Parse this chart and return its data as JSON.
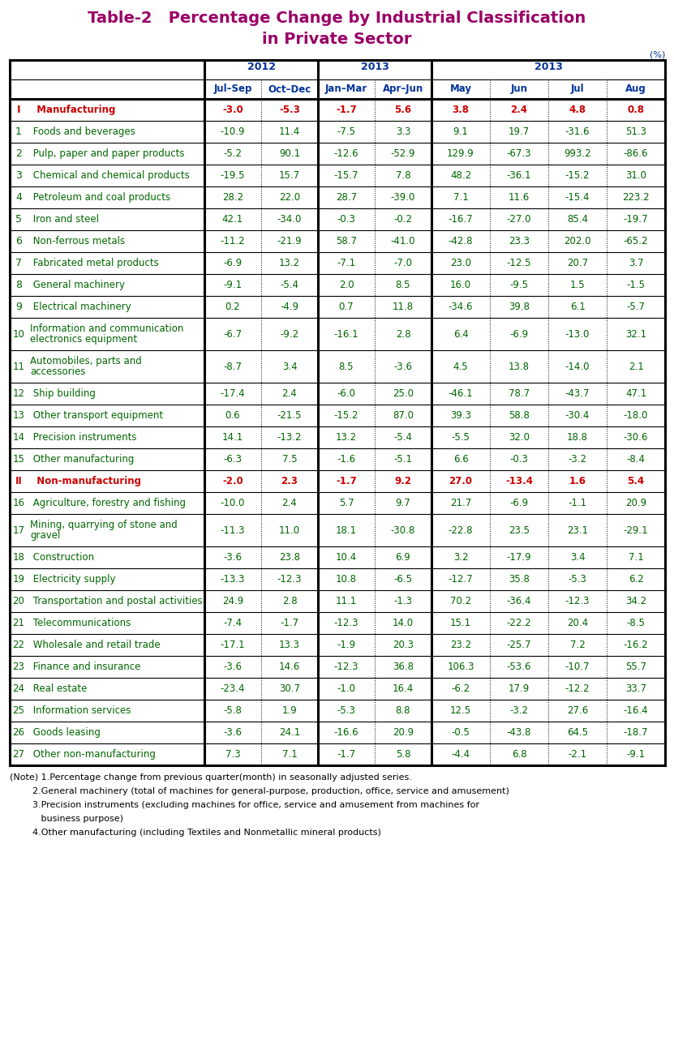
{
  "title_line1": "Table-2   Percentage Change by Industrial Classification",
  "title_line2": "in Private Sector",
  "title_color": "#990066",
  "header_color": "#003399",
  "note_color": "#000000",
  "green_color": "#006600",
  "red_color": "#cc0000",
  "col_headers_row2": [
    "Jul–Sep",
    "Oct–Dec",
    "Jan–Mar",
    "Apr–Jun",
    "May",
    "Jun",
    "Jul",
    "Aug"
  ],
  "rows": [
    {
      "num": "I",
      "label": "  Manufacturing",
      "values": [
        "-3.0",
        "-5.3",
        "-1.7",
        "5.6",
        "3.8",
        "2.4",
        "4.8",
        "0.8"
      ],
      "style": "header"
    },
    {
      "num": "1",
      "label": " Foods and beverages",
      "values": [
        "-10.9",
        "11.4",
        "-7.5",
        "3.3",
        "9.1",
        "19.7",
        "-31.6",
        "51.3"
      ],
      "style": "normal"
    },
    {
      "num": "2",
      "label": " Pulp, paper and paper products",
      "values": [
        "-5.2",
        "90.1",
        "-12.6",
        "-52.9",
        "129.9",
        "-67.3",
        "993.2",
        "-86.6"
      ],
      "style": "normal"
    },
    {
      "num": "3",
      "label": " Chemical and chemical products",
      "values": [
        "-19.5",
        "15.7",
        "-15.7",
        "7.8",
        "48.2",
        "-36.1",
        "-15.2",
        "31.0"
      ],
      "style": "normal"
    },
    {
      "num": "4",
      "label": " Petroleum and coal products",
      "values": [
        "28.2",
        "22.0",
        "28.7",
        "-39.0",
        "7.1",
        "11.6",
        "-15.4",
        "223.2"
      ],
      "style": "normal"
    },
    {
      "num": "5",
      "label": " Iron and steel",
      "values": [
        "42.1",
        "-34.0",
        "-0.3",
        "-0.2",
        "-16.7",
        "-27.0",
        "85.4",
        "-19.7"
      ],
      "style": "normal"
    },
    {
      "num": "6",
      "label": " Non-ferrous metals",
      "values": [
        "-11.2",
        "-21.9",
        "58.7",
        "-41.0",
        "-42.8",
        "23.3",
        "202.0",
        "-65.2"
      ],
      "style": "normal"
    },
    {
      "num": "7",
      "label": " Fabricated metal products",
      "values": [
        "-6.9",
        "13.2",
        "-7.1",
        "-7.0",
        "23.0",
        "-12.5",
        "20.7",
        "3.7"
      ],
      "style": "normal"
    },
    {
      "num": "8",
      "label": " General machinery",
      "values": [
        "-9.1",
        "-5.4",
        "2.0",
        "8.5",
        "16.0",
        "-9.5",
        "1.5",
        "-1.5"
      ],
      "style": "normal"
    },
    {
      "num": "9",
      "label": " Electrical machinery",
      "values": [
        "0.2",
        "-4.9",
        "0.7",
        "11.8",
        "-34.6",
        "39.8",
        "6.1",
        "-5.7"
      ],
      "style": "normal"
    },
    {
      "num": "10",
      "label": "Information and communication\nelectronics equipment",
      "values": [
        "-6.7",
        "-9.2",
        "-16.1",
        "2.8",
        "6.4",
        "-6.9",
        "-13.0",
        "32.1"
      ],
      "style": "multi"
    },
    {
      "num": "11",
      "label": "Automobiles, parts and\naccessories",
      "values": [
        "-8.7",
        "3.4",
        "8.5",
        "-3.6",
        "4.5",
        "13.8",
        "-14.0",
        "2.1"
      ],
      "style": "multi"
    },
    {
      "num": "12",
      "label": " Ship building",
      "values": [
        "-17.4",
        "2.4",
        "-6.0",
        "25.0",
        "-46.1",
        "78.7",
        "-43.7",
        "47.1"
      ],
      "style": "normal"
    },
    {
      "num": "13",
      "label": " Other transport equipment",
      "values": [
        "0.6",
        "-21.5",
        "-15.2",
        "87.0",
        "39.3",
        "58.8",
        "-30.4",
        "-18.0"
      ],
      "style": "normal"
    },
    {
      "num": "14",
      "label": " Precision instruments",
      "values": [
        "14.1",
        "-13.2",
        "13.2",
        "-5.4",
        "-5.5",
        "32.0",
        "18.8",
        "-30.6"
      ],
      "style": "normal"
    },
    {
      "num": "15",
      "label": " Other manufacturing",
      "values": [
        "-6.3",
        "7.5",
        "-1.6",
        "-5.1",
        "6.6",
        "-0.3",
        "-3.2",
        "-8.4"
      ],
      "style": "normal"
    },
    {
      "num": "II",
      "label": "  Non-manufacturing",
      "values": [
        "-2.0",
        "2.3",
        "-1.7",
        "9.2",
        "27.0",
        "-13.4",
        "1.6",
        "5.4"
      ],
      "style": "header"
    },
    {
      "num": "16",
      "label": " Agriculture, forestry and fishing",
      "values": [
        "-10.0",
        "2.4",
        "5.7",
        "9.7",
        "21.7",
        "-6.9",
        "-1.1",
        "20.9"
      ],
      "style": "normal"
    },
    {
      "num": "17",
      "label": "Mining, quarrying of stone and\ngravel",
      "values": [
        "-11.3",
        "11.0",
        "18.1",
        "-30.8",
        "-22.8",
        "23.5",
        "23.1",
        "-29.1"
      ],
      "style": "multi"
    },
    {
      "num": "18",
      "label": " Construction",
      "values": [
        "-3.6",
        "23.8",
        "10.4",
        "6.9",
        "3.2",
        "-17.9",
        "3.4",
        "7.1"
      ],
      "style": "normal"
    },
    {
      "num": "19",
      "label": " Electricity supply",
      "values": [
        "-13.3",
        "-12.3",
        "10.8",
        "-6.5",
        "-12.7",
        "35.8",
        "-5.3",
        "6.2"
      ],
      "style": "normal"
    },
    {
      "num": "20",
      "label": " Transportation and postal activities",
      "values": [
        "24.9",
        "2.8",
        "11.1",
        "-1.3",
        "70.2",
        "-36.4",
        "-12.3",
        "34.2"
      ],
      "style": "normal"
    },
    {
      "num": "21",
      "label": " Telecommunications",
      "values": [
        "-7.4",
        "-1.7",
        "-12.3",
        "14.0",
        "15.1",
        "-22.2",
        "20.4",
        "-8.5"
      ],
      "style": "normal"
    },
    {
      "num": "22",
      "label": " Wholesale and retail trade",
      "values": [
        "-17.1",
        "13.3",
        "-1.9",
        "20.3",
        "23.2",
        "-25.7",
        "7.2",
        "-16.2"
      ],
      "style": "normal"
    },
    {
      "num": "23",
      "label": " Finance and insurance",
      "values": [
        "-3.6",
        "14.6",
        "-12.3",
        "36.8",
        "106.3",
        "-53.6",
        "-10.7",
        "55.7"
      ],
      "style": "normal"
    },
    {
      "num": "24",
      "label": " Real estate",
      "values": [
        "-23.4",
        "30.7",
        "-1.0",
        "16.4",
        "-6.2",
        "17.9",
        "-12.2",
        "33.7"
      ],
      "style": "normal"
    },
    {
      "num": "25",
      "label": " Information services",
      "values": [
        "-5.8",
        "1.9",
        "-5.3",
        "8.8",
        "12.5",
        "-3.2",
        "27.6",
        "-16.4"
      ],
      "style": "normal"
    },
    {
      "num": "26",
      "label": " Goods leasing",
      "values": [
        "-3.6",
        "24.1",
        "-16.6",
        "20.9",
        "-0.5",
        "-43.8",
        "64.5",
        "-18.7"
      ],
      "style": "normal"
    },
    {
      "num": "27",
      "label": " Other non-manufacturing",
      "values": [
        "7.3",
        "7.1",
        "-1.7",
        "5.8",
        "-4.4",
        "6.8",
        "-2.1",
        "-9.1"
      ],
      "style": "normal"
    }
  ],
  "notes": [
    [
      "(Note) 1.Percentage change from previous quarter(month) in seasonally adjusted series.",
      false
    ],
    [
      "        2.General machinery (total of machines for general-purpose, production, office, service and amusement)",
      false
    ],
    [
      "        3.Precision instruments (excluding machines for office, service and amusement from machines for",
      false
    ],
    [
      "           business purpose)",
      false
    ],
    [
      "        4.Other manufacturing (including Textiles and Nonmetallic mineral products)",
      false
    ]
  ]
}
